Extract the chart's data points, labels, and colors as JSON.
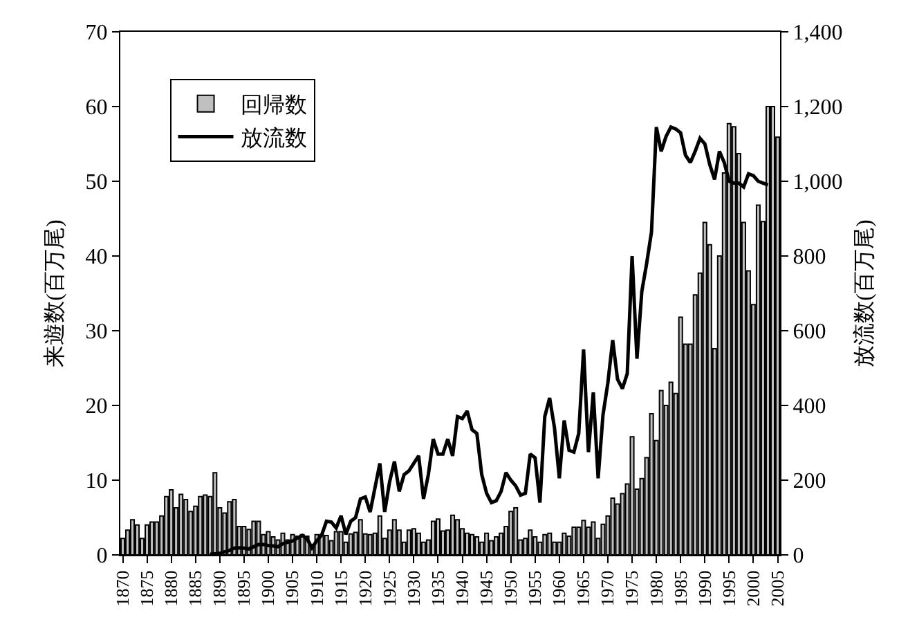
{
  "chart_data": {
    "type": "bar",
    "categories": [
      "1870",
      null,
      null,
      null,
      null,
      "1875",
      null,
      null,
      null,
      null,
      "1880",
      null,
      null,
      null,
      null,
      "1885",
      null,
      null,
      null,
      null,
      "1890",
      null,
      null,
      null,
      null,
      "1895",
      null,
      null,
      null,
      null,
      "1900",
      null,
      null,
      null,
      null,
      "1905",
      null,
      null,
      null,
      null,
      "1910",
      null,
      null,
      null,
      null,
      "1915",
      null,
      null,
      null,
      null,
      "1920",
      null,
      null,
      null,
      null,
      "1925",
      null,
      null,
      null,
      null,
      "1930",
      null,
      null,
      null,
      null,
      "1935",
      null,
      null,
      null,
      null,
      "1940",
      null,
      null,
      null,
      null,
      "1945",
      null,
      null,
      null,
      null,
      "1950",
      null,
      null,
      null,
      null,
      "1955",
      null,
      null,
      null,
      null,
      "1960",
      null,
      null,
      null,
      null,
      "1965",
      null,
      null,
      null,
      null,
      "1970",
      null,
      null,
      null,
      null,
      "1975",
      null,
      null,
      null,
      null,
      "1980",
      null,
      null,
      null,
      null,
      "1985",
      null,
      null,
      null,
      null,
      "1990",
      null,
      null,
      null,
      null,
      "1995",
      null,
      null,
      null,
      null,
      "2000",
      null,
      null,
      null,
      null,
      "2005"
    ],
    "series": [
      {
        "name": "回帰数",
        "color": "#c0c0c0",
        "values": [
          2.2,
          3.3,
          4.7,
          4.0,
          2.2,
          4.0,
          4.4,
          4.4,
          5.2,
          7.8,
          8.7,
          6.3,
          8.1,
          7.4,
          5.8,
          6.5,
          7.8,
          8.0,
          7.8,
          11.0,
          6.3,
          5.6,
          7.1,
          7.4,
          3.8,
          3.8,
          3.4,
          4.5,
          4.5,
          2.7,
          3.1,
          2.4,
          2.0,
          2.9,
          2.0,
          2.7,
          2.5,
          2.7,
          2.5,
          1.4,
          2.7,
          2.7,
          2.6,
          1.9,
          3.1,
          3.1,
          1.7,
          2.8,
          3.0,
          4.7,
          2.8,
          2.7,
          2.9,
          5.2,
          2.2,
          3.3,
          4.7,
          3.3,
          1.7,
          3.3,
          3.5,
          2.9,
          1.7,
          2.0,
          4.5,
          4.8,
          3.2,
          3.3,
          5.3,
          4.7,
          3.5,
          2.9,
          2.7,
          2.4,
          1.7,
          2.9,
          1.9,
          2.4,
          2.9,
          3.8,
          5.8,
          6.3,
          2.0,
          2.2,
          3.3,
          2.4,
          1.7,
          2.7,
          2.9,
          1.7,
          1.7,
          2.9,
          2.5,
          3.7,
          3.7,
          4.6,
          3.7,
          4.4,
          2.2,
          4.1,
          5.2,
          7.6,
          6.8,
          8.2,
          9.5,
          15.8,
          8.8,
          10.2,
          13.0,
          18.9,
          15.3,
          22.0,
          20.0,
          23.1,
          21.6,
          31.8,
          28.2,
          28.2,
          34.8,
          37.7,
          44.5,
          41.5,
          27.6,
          40.0,
          51.1,
          57.7,
          57.3,
          53.7,
          44.5,
          38.0,
          33.5,
          46.8,
          44.6,
          60.0,
          60.0,
          55.9
        ]
      },
      {
        "name": "放流数",
        "type": "line",
        "axis": "y2",
        "color": "#000000",
        "values": [
          null,
          null,
          null,
          null,
          null,
          null,
          null,
          null,
          null,
          null,
          null,
          null,
          null,
          null,
          null,
          null,
          null,
          null,
          2,
          3,
          4,
          8,
          12,
          18,
          19,
          18,
          16,
          22,
          28,
          28,
          25,
          24,
          22,
          30,
          34,
          37,
          45,
          52,
          43,
          19,
          38,
          53,
          90,
          88,
          72,
          105,
          55,
          90,
          100,
          150,
          155,
          115,
          180,
          245,
          115,
          195,
          250,
          170,
          215,
          225,
          245,
          265,
          150,
          215,
          310,
          270,
          270,
          310,
          265,
          370,
          365,
          385,
          335,
          325,
          215,
          165,
          140,
          145,
          170,
          220,
          200,
          185,
          160,
          165,
          270,
          260,
          140,
          370,
          420,
          340,
          205,
          360,
          280,
          275,
          325,
          550,
          275,
          435,
          205,
          375,
          460,
          575,
          470,
          445,
          485,
          800,
          525,
          705,
          780,
          865,
          1145,
          1080,
          1120,
          1145,
          1140,
          1130,
          1070,
          1050,
          1080,
          1115,
          1100,
          1045,
          1005,
          1080,
          1050,
          1000,
          995,
          995,
          985,
          1020,
          1015,
          1000,
          995,
          990,
          null,
          null
        ]
      }
    ],
    "ylabel": "来遊数(百万尾)",
    "y2label": "放流数(百万尾)",
    "ylim": [
      0,
      70
    ],
    "yticks": [
      0,
      10,
      20,
      30,
      40,
      50,
      60,
      70
    ],
    "y2lim": [
      0,
      1400
    ],
    "y2ticks": [
      0,
      200,
      400,
      600,
      800,
      {
        "value": 1000,
        "label": "1,000"
      },
      {
        "value": 1200,
        "label": "1,200"
      },
      {
        "value": 1400,
        "label": "1,400"
      }
    ],
    "legend": "top left"
  }
}
